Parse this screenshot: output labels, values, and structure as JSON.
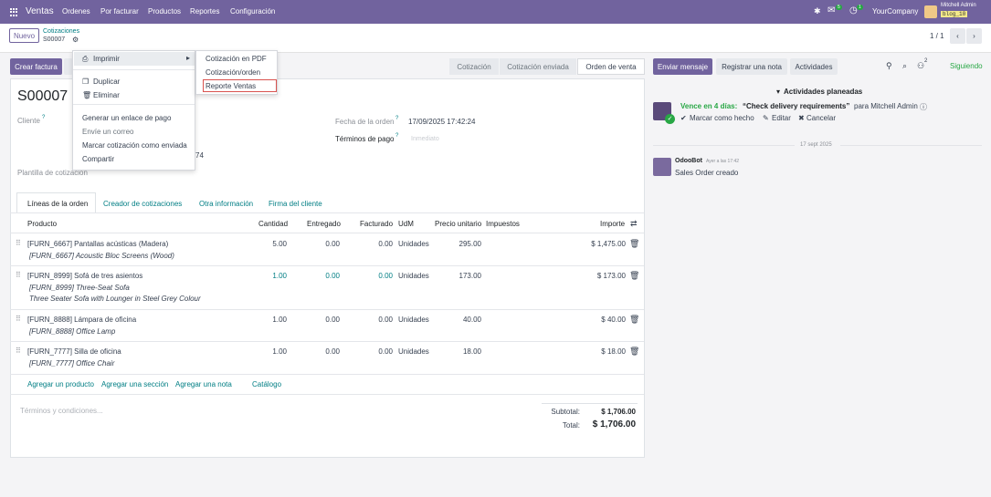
{
  "navbar": {
    "app": "Ventas",
    "menu": [
      "Ordenes",
      "Por facturar",
      "Productos",
      "Reportes",
      "Configuración"
    ],
    "messages_badge": "5",
    "activities_badge": "1",
    "company": "YourCompany",
    "user_name": "Mitchell Admin",
    "db_name": "blog_10"
  },
  "control": {
    "new_label": "Nuevo",
    "breadcrumb_parent": "Cotizaciones",
    "record_name": "S00007",
    "pager": "1 / 1",
    "create_invoice": "Crear factura"
  },
  "status": {
    "steps": [
      "Cotización",
      "Cotización enviada",
      "Orden de venta"
    ],
    "active": "Orden de venta"
  },
  "chatter": {
    "send_message": "Enviar mensaje",
    "log_note": "Registrar una nota",
    "activities": "Actividades",
    "followers_count": "2",
    "following": "Siguiendo",
    "planned_header": "Actividades planeadas",
    "activity_due": "Vence en 4 días:",
    "activity_title": "“Check delivery requirements”",
    "activity_for": "para Mitchell Admin",
    "mark_done": "Marcar como hecho",
    "edit": "Editar",
    "cancel": "Cancelar",
    "date_sep": "17 sept 2025",
    "msg_author": "OdooBot",
    "msg_time": "Ayer a las 17:42",
    "msg_body": "Sales Order creado"
  },
  "form": {
    "title": "S00007",
    "customer_label": "Cliente",
    "customer_tail": "74",
    "template_label": "Plantilla de cotización",
    "date_label": "Fecha de la orden",
    "date_value": "17/09/2025 17:42:24",
    "terms_label": "Términos de pago",
    "terms_placeholder": "Inmediato"
  },
  "tabs": [
    "Líneas de la orden",
    "Creador de cotizaciones",
    "Otra información",
    "Firma del cliente"
  ],
  "table": {
    "headers": {
      "product": "Producto",
      "qty": "Cantidad",
      "delivered": "Entregado",
      "invoiced": "Facturado",
      "uom": "UdM",
      "price": "Precio unitario",
      "taxes": "Impuestos",
      "amount": "Importe"
    },
    "rows": [
      {
        "product": "[FURN_6667] Pantallas acústicas (Madera)",
        "desc1": "[FURN_6667] Acoustic Bloc Screens (Wood)",
        "desc2": "",
        "qty": "5.00",
        "delivered": "0.00",
        "invoiced": "0.00",
        "uom": "Unidades",
        "price": "295.00",
        "amount": "$ 1,475.00"
      },
      {
        "product": "[FURN_8999] Sofá de tres asientos",
        "desc1": "[FURN_8999] Three-Seat Sofa",
        "desc2": "Three Seater Sofa with Lounger in Steel Grey Colour",
        "qty": "1.00",
        "delivered": "0.00",
        "invoiced": "0.00",
        "uom": "Unidades",
        "price": "173.00",
        "amount": "$ 173.00"
      },
      {
        "product": "[FURN_8888] Lámpara de oficina",
        "desc1": "[FURN_8888] Office Lamp",
        "desc2": "",
        "qty": "1.00",
        "delivered": "0.00",
        "invoiced": "0.00",
        "uom": "Unidades",
        "price": "40.00",
        "amount": "$ 40.00"
      },
      {
        "product": "[FURN_7777] Silla de oficina",
        "desc1": "[FURN_7777] Office Chair",
        "desc2": "",
        "qty": "1.00",
        "delivered": "0.00",
        "invoiced": "0.00",
        "uom": "Unidades",
        "price": "18.00",
        "amount": "$ 18.00"
      }
    ],
    "add_product": "Agregar un producto",
    "add_section": "Agregar una sección",
    "add_note": "Agregar una nota",
    "catalog": "Catálogo"
  },
  "footer": {
    "terms_placeholder": "Términos y condiciones...",
    "subtotal_label": "Subtotal:",
    "subtotal_value": "$ 1,706.00",
    "total_label": "Total:",
    "total_value": "$ 1,706.00"
  },
  "dropdown": {
    "print": "Imprimir",
    "duplicate": "Duplicar",
    "delete": "Eliminar",
    "payment_link": "Generar un enlace de pago",
    "send_email": "Envíe un correo",
    "mark_sent": "Marcar cotización como enviada",
    "share": "Compartir"
  },
  "submenu": {
    "items": [
      "Cotización en PDF",
      "Cotización/orden",
      "Reporte Ventas"
    ]
  },
  "colors": {
    "brand": "#71639e",
    "teal": "#017e84",
    "success": "#28a745",
    "highlight_border": "#d9534f"
  }
}
